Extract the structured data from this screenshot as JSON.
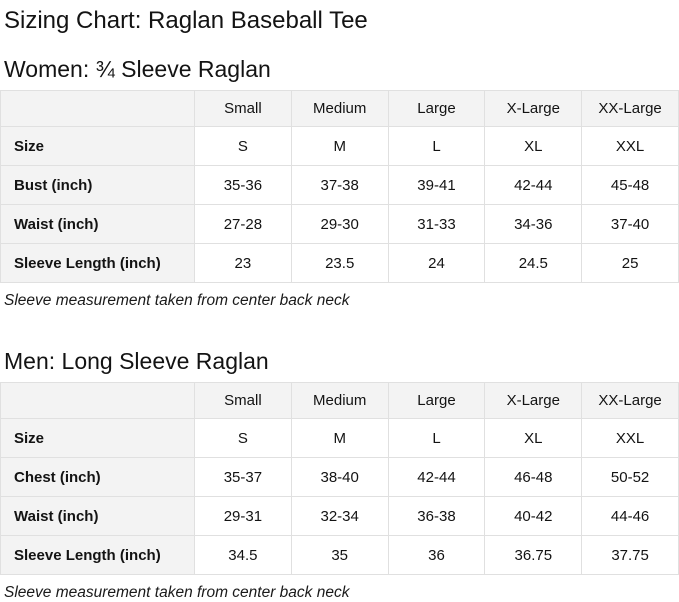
{
  "page_title": "Sizing Chart: Raglan Baseball Tee",
  "colors": {
    "text": "#131313",
    "header_cell_background": "#f3f3f3",
    "table_border": "#e0e0e0",
    "page_background": "#ffffff"
  },
  "sections": [
    {
      "heading": "Women: ¾ Sleeve Raglan",
      "columns": [
        "",
        "Small",
        "Medium",
        "Large",
        "X-Large",
        "XX-Large"
      ],
      "rows": [
        {
          "label": "Size",
          "values": [
            "S",
            "M",
            "L",
            "XL",
            "XXL"
          ]
        },
        {
          "label": "Bust (inch)",
          "values": [
            "35-36",
            "37-38",
            "39-41",
            "42-44",
            "45-48"
          ]
        },
        {
          "label": "Waist (inch)",
          "values": [
            "27-28",
            "29-30",
            "31-33",
            "34-36",
            "37-40"
          ]
        },
        {
          "label": "Sleeve Length (inch)",
          "values": [
            "23",
            "23.5",
            "24",
            "24.5",
            "25"
          ]
        }
      ],
      "note": "Sleeve measurement taken from center back neck"
    },
    {
      "heading": "Men: Long Sleeve Raglan",
      "columns": [
        "",
        "Small",
        "Medium",
        "Large",
        "X-Large",
        "XX-Large"
      ],
      "rows": [
        {
          "label": "Size",
          "values": [
            "S",
            "M",
            "L",
            "XL",
            "XXL"
          ]
        },
        {
          "label": "Chest (inch)",
          "values": [
            "35-37",
            "38-40",
            "42-44",
            "46-48",
            "50-52"
          ]
        },
        {
          "label": "Waist (inch)",
          "values": [
            "29-31",
            "32-34",
            "36-38",
            "40-42",
            "44-46"
          ]
        },
        {
          "label": "Sleeve Length (inch)",
          "values": [
            "34.5",
            "35",
            "36",
            "36.75",
            "37.75"
          ]
        }
      ],
      "note": "Sleeve measurement taken from center back neck"
    }
  ]
}
